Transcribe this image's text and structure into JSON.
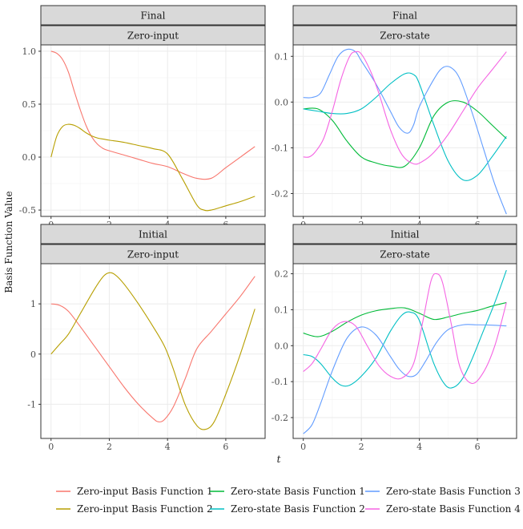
{
  "chart_data": {
    "type": "line",
    "xlabel": "t",
    "ylabel": "Basis Function Value",
    "xlim": [
      -0.35,
      7.35
    ],
    "xticks": [
      0,
      2,
      4,
      6
    ],
    "series_meta": [
      {
        "id": "zi1",
        "name": "Zero-input Basis Function 1",
        "color": "#F8766D"
      },
      {
        "id": "zi2",
        "name": "Zero-input Basis Function 2",
        "color": "#B79F00"
      },
      {
        "id": "zs1",
        "name": "Zero-state Basis Function 1",
        "color": "#00BA38"
      },
      {
        "id": "zs2",
        "name": "Zero-state Basis Function 2",
        "color": "#00BFC4"
      },
      {
        "id": "zs3",
        "name": "Zero-state Basis Function 3",
        "color": "#619CFF"
      },
      {
        "id": "zs4",
        "name": "Zero-state Basis Function 4",
        "color": "#F564E3"
      }
    ],
    "legend_rows": [
      [
        "zi1",
        "zs1",
        "zs3"
      ],
      [
        "zi2",
        "zs2",
        "zs4"
      ]
    ],
    "panels": [
      {
        "strip_top": "Final",
        "strip_bottom": "Zero-input",
        "ylim": [
          -0.56,
          1.06
        ],
        "yticks": [
          -0.5,
          0.0,
          0.5,
          1.0
        ],
        "ytick_labels": [
          "-0.5",
          "0.0",
          "0.5",
          "1.0"
        ],
        "series": [
          {
            "id": "zi1",
            "x": [
              0,
              0.2,
              0.4,
              0.6,
              0.8,
              1.0,
              1.2,
              1.4,
              1.6,
              1.8,
              2.0,
              2.5,
              3.0,
              3.5,
              4.0,
              4.5,
              5.0,
              5.5,
              6.0,
              6.5,
              7.0
            ],
            "y": [
              1.0,
              0.98,
              0.92,
              0.8,
              0.62,
              0.45,
              0.3,
              0.19,
              0.12,
              0.08,
              0.06,
              0.02,
              -0.02,
              -0.06,
              -0.09,
              -0.15,
              -0.2,
              -0.2,
              -0.1,
              0.0,
              0.1
            ]
          },
          {
            "id": "zi2",
            "x": [
              0,
              0.2,
              0.4,
              0.6,
              0.8,
              1.0,
              1.2,
              1.4,
              1.6,
              1.8,
              2.0,
              2.5,
              3.0,
              3.5,
              4.0,
              4.5,
              5.0,
              5.25,
              5.5,
              6.0,
              6.5,
              7.0
            ],
            "y": [
              0.0,
              0.2,
              0.29,
              0.31,
              0.3,
              0.27,
              0.23,
              0.2,
              0.18,
              0.17,
              0.16,
              0.14,
              0.11,
              0.08,
              0.03,
              -0.2,
              -0.45,
              -0.5,
              -0.5,
              -0.46,
              -0.42,
              -0.37
            ]
          }
        ]
      },
      {
        "strip_top": "Final",
        "strip_bottom": "Zero-state",
        "ylim": [
          -0.25,
          0.125
        ],
        "yticks": [
          -0.2,
          -0.1,
          0.0,
          0.1
        ],
        "ytick_labels": [
          "-0.2",
          "-0.1",
          "0.0",
          "0.1"
        ],
        "series": [
          {
            "id": "zs1",
            "x": [
              0,
              0.5,
              1.0,
              1.5,
              2.0,
              2.5,
              3.0,
              3.5,
              4.0,
              4.5,
              5.0,
              5.5,
              6.0,
              6.5,
              7.0
            ],
            "y": [
              -0.015,
              -0.015,
              -0.04,
              -0.085,
              -0.12,
              -0.133,
              -0.14,
              -0.14,
              -0.1,
              -0.03,
              0.0,
              0.0,
              -0.02,
              -0.05,
              -0.08
            ]
          },
          {
            "id": "zs2",
            "x": [
              0,
              0.5,
              1.0,
              1.5,
              2.0,
              2.5,
              3.0,
              3.5,
              3.8,
              4.0,
              4.5,
              5.0,
              5.5,
              6.0,
              6.5,
              7.0
            ],
            "y": [
              -0.015,
              -0.02,
              -0.025,
              -0.025,
              -0.015,
              0.01,
              0.04,
              0.062,
              0.06,
              0.04,
              -0.05,
              -0.13,
              -0.17,
              -0.16,
              -0.12,
              -0.075
            ]
          },
          {
            "id": "zs3",
            "x": [
              0,
              0.3,
              0.6,
              0.9,
              1.2,
              1.5,
              1.8,
              2.0,
              2.5,
              3.0,
              3.3,
              3.6,
              3.8,
              4.0,
              4.5,
              4.8,
              5.1,
              5.4,
              5.8,
              6.2,
              6.6,
              7.0
            ],
            "y": [
              0.01,
              0.01,
              0.02,
              0.06,
              0.1,
              0.115,
              0.11,
              0.09,
              0.04,
              -0.02,
              -0.055,
              -0.068,
              -0.05,
              -0.01,
              0.05,
              0.075,
              0.075,
              0.05,
              -0.02,
              -0.1,
              -0.18,
              -0.245
            ]
          },
          {
            "id": "zs4",
            "x": [
              0,
              0.2,
              0.4,
              0.7,
              1.0,
              1.3,
              1.6,
              1.8,
              2.0,
              2.3,
              2.6,
              3.0,
              3.4,
              3.8,
              4.1,
              4.5,
              5.0,
              5.5,
              6.0,
              6.5,
              7.0
            ],
            "y": [
              -0.12,
              -0.12,
              -0.11,
              -0.08,
              -0.02,
              0.05,
              0.1,
              0.11,
              0.105,
              0.07,
              0.02,
              -0.06,
              -0.115,
              -0.135,
              -0.13,
              -0.11,
              -0.07,
              -0.02,
              0.03,
              0.07,
              0.11
            ]
          }
        ]
      },
      {
        "strip_top": "Initial",
        "strip_bottom": "Zero-input",
        "ylim": [
          -1.68,
          1.8
        ],
        "yticks": [
          -1,
          0,
          1
        ],
        "ytick_labels": [
          "-1",
          "0",
          "1"
        ],
        "series": [
          {
            "id": "zi1",
            "x": [
              0,
              0.3,
              0.6,
              1.0,
              1.5,
              2.0,
              2.5,
              3.0,
              3.5,
              3.7,
              3.9,
              4.2,
              4.6,
              5.0,
              5.5,
              6.0,
              6.5,
              7.0
            ],
            "y": [
              1.0,
              0.97,
              0.85,
              0.55,
              0.15,
              -0.25,
              -0.65,
              -1.0,
              -1.28,
              -1.35,
              -1.3,
              -1.05,
              -0.5,
              0.1,
              0.45,
              0.8,
              1.15,
              1.55
            ]
          },
          {
            "id": "zi2",
            "x": [
              0,
              0.3,
              0.6,
              1.0,
              1.5,
              1.8,
              2.0,
              2.2,
              2.5,
              3.0,
              3.5,
              3.9,
              4.2,
              4.6,
              5.0,
              5.3,
              5.6,
              6.0,
              6.5,
              7.0
            ],
            "y": [
              0.0,
              0.2,
              0.4,
              0.8,
              1.3,
              1.55,
              1.62,
              1.58,
              1.4,
              1.0,
              0.55,
              0.15,
              -0.3,
              -1.0,
              -1.42,
              -1.5,
              -1.35,
              -0.8,
              0.0,
              0.9
            ]
          }
        ]
      },
      {
        "strip_top": "Initial",
        "strip_bottom": "Zero-state",
        "ylim": [
          -0.258,
          0.228
        ],
        "yticks": [
          -0.2,
          -0.1,
          0.0,
          0.1,
          0.2
        ],
        "ytick_labels": [
          "-0.2",
          "-0.1",
          "0.0",
          "0.1",
          "0.2"
        ],
        "series": [
          {
            "id": "zs1",
            "x": [
              0,
              0.5,
              1.0,
              1.5,
              2.0,
              2.5,
              3.0,
              3.5,
              4.0,
              4.5,
              5.0,
              5.5,
              6.0,
              6.5,
              7.0
            ],
            "y": [
              0.035,
              0.025,
              0.04,
              0.065,
              0.085,
              0.097,
              0.103,
              0.105,
              0.09,
              0.073,
              0.08,
              0.09,
              0.098,
              0.11,
              0.12
            ]
          },
          {
            "id": "zs2",
            "x": [
              0,
              0.3,
              0.6,
              1.0,
              1.3,
              1.6,
              2.0,
              2.5,
              3.0,
              3.4,
              3.7,
              4.0,
              4.5,
              4.9,
              5.2,
              5.5,
              5.8,
              6.2,
              6.6,
              7.0
            ],
            "y": [
              -0.025,
              -0.03,
              -0.05,
              -0.09,
              -0.11,
              -0.11,
              -0.085,
              -0.035,
              0.04,
              0.085,
              0.093,
              0.07,
              -0.05,
              -0.11,
              -0.115,
              -0.09,
              -0.04,
              0.04,
              0.12,
              0.21
            ]
          },
          {
            "id": "zs3",
            "x": [
              0,
              0.3,
              0.6,
              1.0,
              1.5,
              2.0,
              2.5,
              3.0,
              3.3,
              3.6,
              3.9,
              4.2,
              4.6,
              5.0,
              5.5,
              6.0,
              6.5,
              7.0
            ],
            "y": [
              -0.245,
              -0.22,
              -0.16,
              -0.07,
              0.02,
              0.052,
              0.03,
              -0.03,
              -0.065,
              -0.085,
              -0.08,
              -0.045,
              0.01,
              0.045,
              0.058,
              0.058,
              0.057,
              0.055
            ]
          },
          {
            "id": "zs4",
            "x": [
              0,
              0.3,
              0.6,
              1.0,
              1.4,
              1.8,
              2.2,
              2.6,
              3.0,
              3.4,
              3.8,
              4.1,
              4.4,
              4.6,
              4.8,
              5.1,
              5.4,
              5.8,
              6.2,
              6.6,
              7.0
            ],
            "y": [
              -0.072,
              -0.05,
              -0.01,
              0.045,
              0.067,
              0.055,
              0.0,
              -0.055,
              -0.085,
              -0.09,
              -0.05,
              0.06,
              0.18,
              0.2,
              0.175,
              0.06,
              -0.06,
              -0.105,
              -0.075,
              0.0,
              0.12
            ]
          }
        ]
      }
    ]
  }
}
